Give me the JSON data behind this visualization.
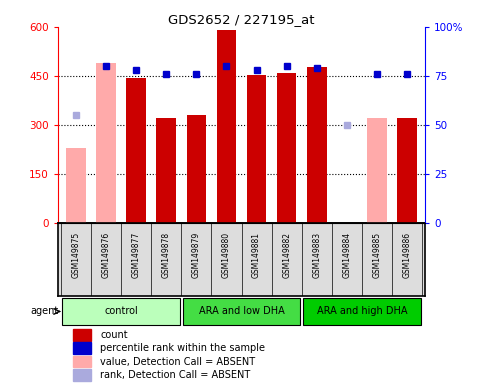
{
  "title": "GDS2652 / 227195_at",
  "samples": [
    "GSM149875",
    "GSM149876",
    "GSM149877",
    "GSM149878",
    "GSM149879",
    "GSM149880",
    "GSM149881",
    "GSM149882",
    "GSM149883",
    "GSM149884",
    "GSM149885",
    "GSM149886"
  ],
  "groups": [
    {
      "label": "control",
      "start": 0,
      "end": 3,
      "color": "#bbffbb"
    },
    {
      "label": "ARA and low DHA",
      "start": 4,
      "end": 7,
      "color": "#44dd44"
    },
    {
      "label": "ARA and high DHA",
      "start": 8,
      "end": 11,
      "color": "#00cc00"
    }
  ],
  "count_present": [
    null,
    null,
    444,
    320,
    330,
    590,
    452,
    460,
    476,
    null,
    null,
    322
  ],
  "count_absent": [
    230,
    490,
    null,
    null,
    null,
    null,
    null,
    null,
    null,
    null,
    320,
    null
  ],
  "pct_present": [
    null,
    80,
    78,
    76,
    76,
    80,
    78,
    80,
    79,
    null,
    76,
    76
  ],
  "pct_absent": [
    55,
    null,
    null,
    null,
    null,
    null,
    null,
    null,
    null,
    50,
    null,
    null
  ],
  "left_ylim": [
    0,
    600
  ],
  "right_ylim": [
    0,
    100
  ],
  "left_yticks": [
    0,
    150,
    300,
    450,
    600
  ],
  "right_yticks": [
    0,
    25,
    50,
    75,
    100
  ],
  "right_yticklabels": [
    "0",
    "25",
    "50",
    "75",
    "100%"
  ],
  "bar_color_present": "#cc0000",
  "bar_color_absent": "#ffaaaa",
  "dot_color_present": "#0000cc",
  "dot_color_absent": "#aaaadd",
  "legend_items": [
    {
      "color": "#cc0000",
      "label": "count"
    },
    {
      "color": "#0000cc",
      "label": "percentile rank within the sample"
    },
    {
      "color": "#ffaaaa",
      "label": "value, Detection Call = ABSENT"
    },
    {
      "color": "#aaaadd",
      "label": "rank, Detection Call = ABSENT"
    }
  ]
}
